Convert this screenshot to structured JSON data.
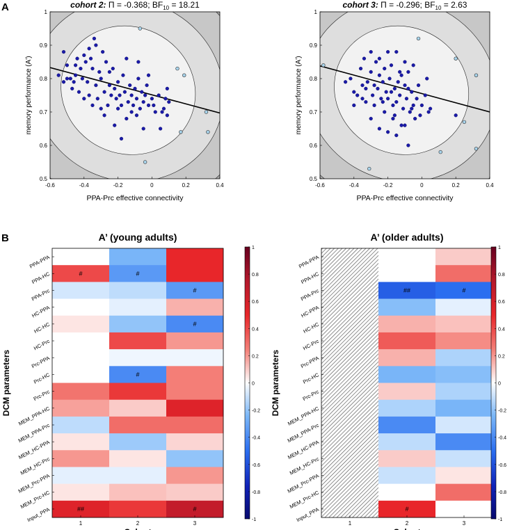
{
  "panel_labels": {
    "a": "A",
    "b": "B"
  },
  "ellipse_colors": [
    "#f2f2f2",
    "#dedede",
    "#c7c7c7",
    "#a8a8a8",
    "#8a8a8a",
    "#6a6a6a",
    "#4a4a4a",
    "#2e2e2e"
  ],
  "marker_colors": {
    "inlier": "#1a1aa8",
    "outlier": "#a8d4ec"
  },
  "chart_data": [
    {
      "type": "scatter",
      "panel": "A",
      "title_cohort": "cohort 2:",
      "title_stats": " Π = -0.368; BF",
      "title_bf_sub": "10",
      "title_bf_val": " = 18.21",
      "xlabel": "PPA-Prc effective connectivity",
      "ylabel": "memory performance (A')",
      "xlim": [
        -0.6,
        0.4
      ],
      "ylim": [
        0.5,
        1.0
      ],
      "xticks": [
        "-0.6",
        "-0.4",
        "-0.2",
        "0",
        "0.2",
        "0.4"
      ],
      "yticks": [
        "0.5",
        "0.6",
        "0.7",
        "0.8",
        "0.9",
        "1"
      ],
      "fit_line": {
        "x": [
          -0.6,
          0.4
        ],
        "y": [
          0.833,
          0.697
        ]
      },
      "ellipse": {
        "cx": -0.14,
        "cy": 0.765,
        "a": [
          0.36,
          -0.09
        ],
        "b": [
          0.12,
          0.18
        ]
      },
      "inliers": [
        [
          -0.55,
          0.81
        ],
        [
          -0.52,
          0.88
        ],
        [
          -0.5,
          0.84
        ],
        [
          -0.48,
          0.8
        ],
        [
          -0.47,
          0.77
        ],
        [
          -0.46,
          0.79
        ],
        [
          -0.45,
          0.84
        ],
        [
          -0.44,
          0.86
        ],
        [
          -0.43,
          0.76
        ],
        [
          -0.42,
          0.83
        ],
        [
          -0.41,
          0.8
        ],
        [
          -0.4,
          0.87
        ],
        [
          -0.39,
          0.85
        ],
        [
          -0.38,
          0.79
        ],
        [
          -0.37,
          0.75
        ],
        [
          -0.36,
          0.86
        ],
        [
          -0.35,
          0.83
        ],
        [
          -0.34,
          0.92
        ],
        [
          -0.33,
          0.78
        ],
        [
          -0.32,
          0.74
        ],
        [
          -0.31,
          0.82
        ],
        [
          -0.3,
          0.8
        ],
        [
          -0.29,
          0.88
        ],
        [
          -0.28,
          0.76
        ],
        [
          -0.27,
          0.85
        ],
        [
          -0.26,
          0.72
        ],
        [
          -0.25,
          0.78
        ],
        [
          -0.24,
          0.75
        ],
        [
          -0.23,
          0.83
        ],
        [
          -0.22,
          0.77
        ],
        [
          -0.21,
          0.74
        ],
        [
          -0.2,
          0.79
        ],
        [
          -0.19,
          0.75
        ],
        [
          -0.18,
          0.72
        ],
        [
          -0.17,
          0.81
        ],
        [
          -0.16,
          0.76
        ],
        [
          -0.15,
          0.68
        ],
        [
          -0.14,
          0.73
        ],
        [
          -0.13,
          0.78
        ],
        [
          -0.12,
          0.75
        ],
        [
          -0.11,
          0.72
        ],
        [
          -0.1,
          0.77
        ],
        [
          -0.09,
          0.74
        ],
        [
          -0.08,
          0.8
        ],
        [
          -0.07,
          0.71
        ],
        [
          -0.06,
          0.76
        ],
        [
          -0.05,
          0.73
        ],
        [
          -0.04,
          0.75
        ],
        [
          -0.03,
          0.78
        ],
        [
          -0.02,
          0.72
        ],
        [
          0.0,
          0.74
        ],
        [
          0.02,
          0.7
        ],
        [
          0.04,
          0.75
        ],
        [
          0.06,
          0.7
        ],
        [
          0.07,
          0.71
        ],
        [
          0.08,
          0.74
        ],
        [
          0.09,
          0.77
        ],
        [
          0.1,
          0.73
        ],
        [
          -0.28,
          0.69
        ],
        [
          -0.22,
          0.66
        ],
        [
          -0.3,
          0.71
        ],
        [
          -0.18,
          0.62
        ],
        [
          -0.05,
          0.65
        ],
        [
          0.05,
          0.65
        ],
        [
          -0.35,
          0.72
        ],
        [
          -0.12,
          0.7
        ],
        [
          -0.25,
          0.82
        ],
        [
          -0.15,
          0.86
        ],
        [
          -0.37,
          0.89
        ],
        [
          -0.33,
          0.9
        ],
        [
          -0.4,
          0.74
        ],
        [
          -0.45,
          0.81
        ],
        [
          -0.52,
          0.79
        ],
        [
          -0.5,
          0.8
        ],
        [
          -0.09,
          0.69
        ],
        [
          0.01,
          0.72
        ],
        [
          -0.02,
          0.81
        ],
        [
          -0.08,
          0.85
        ],
        [
          0.09,
          0.69
        ],
        [
          -0.2,
          0.71
        ]
      ],
      "outliers": [
        [
          -0.07,
          0.95
        ],
        [
          0.15,
          0.83
        ],
        [
          0.19,
          0.81
        ],
        [
          0.32,
          0.7
        ],
        [
          0.33,
          0.64
        ],
        [
          0.17,
          0.64
        ],
        [
          -0.04,
          0.55
        ]
      ]
    },
    {
      "type": "scatter",
      "panel": "A",
      "title_cohort": "cohort 3:",
      "title_stats": " Π = -0.296; BF",
      "title_bf_sub": "10",
      "title_bf_val": " = 2.63",
      "xlabel": "PPA-Prc effective connectivity",
      "ylabel": "memory performance (A')",
      "xlim": [
        -0.6,
        0.4
      ],
      "ylim": [
        0.5,
        1.0
      ],
      "xticks": [
        "-0.6",
        "-0.4",
        "-0.2",
        "0",
        "0.2",
        "0.4"
      ],
      "yticks": [
        "0.5",
        "0.6",
        "0.7",
        "0.8",
        "0.9",
        "1"
      ],
      "fit_line": {
        "x": [
          -0.6,
          0.4
        ],
        "y": [
          0.838,
          0.7
        ]
      },
      "ellipse": {
        "cx": -0.12,
        "cy": 0.765,
        "a": [
          0.36,
          -0.09
        ],
        "b": [
          0.12,
          0.18
        ]
      },
      "inliers": [
        [
          -0.42,
          0.8
        ],
        [
          -0.4,
          0.76
        ],
        [
          -0.38,
          0.75
        ],
        [
          -0.36,
          0.83
        ],
        [
          -0.35,
          0.78
        ],
        [
          -0.34,
          0.86
        ],
        [
          -0.33,
          0.73
        ],
        [
          -0.32,
          0.79
        ],
        [
          -0.3,
          0.82
        ],
        [
          -0.29,
          0.75
        ],
        [
          -0.28,
          0.72
        ],
        [
          -0.27,
          0.85
        ],
        [
          -0.26,
          0.77
        ],
        [
          -0.25,
          0.81
        ],
        [
          -0.24,
          0.74
        ],
        [
          -0.23,
          0.79
        ],
        [
          -0.22,
          0.83
        ],
        [
          -0.21,
          0.76
        ],
        [
          -0.2,
          0.74
        ],
        [
          -0.19,
          0.8
        ],
        [
          -0.18,
          0.84
        ],
        [
          -0.17,
          0.72
        ],
        [
          -0.16,
          0.77
        ],
        [
          -0.15,
          0.73
        ],
        [
          -0.14,
          0.79
        ],
        [
          -0.13,
          0.75
        ],
        [
          -0.12,
          0.81
        ],
        [
          -0.11,
          0.71
        ],
        [
          -0.1,
          0.78
        ],
        [
          -0.09,
          0.74
        ],
        [
          -0.08,
          0.82
        ],
        [
          -0.07,
          0.7
        ],
        [
          -0.06,
          0.76
        ],
        [
          -0.05,
          0.72
        ],
        [
          -0.04,
          0.68
        ],
        [
          -0.03,
          0.74
        ],
        [
          -0.02,
          0.78
        ],
        [
          0.0,
          0.72
        ],
        [
          0.02,
          0.75
        ],
        [
          0.04,
          0.7
        ],
        [
          -0.3,
          0.88
        ],
        [
          -0.25,
          0.86
        ],
        [
          -0.15,
          0.88
        ],
        [
          -0.2,
          0.88
        ],
        [
          -0.1,
          0.85
        ],
        [
          -0.05,
          0.84
        ],
        [
          -0.22,
          0.7
        ],
        [
          -0.17,
          0.68
        ],
        [
          -0.12,
          0.66
        ],
        [
          -0.3,
          0.68
        ],
        [
          -0.25,
          0.65
        ],
        [
          -0.2,
          0.64
        ],
        [
          -0.15,
          0.63
        ],
        [
          -0.1,
          0.66
        ],
        [
          -0.08,
          0.6
        ],
        [
          0.2,
          0.69
        ],
        [
          -0.35,
          0.74
        ],
        [
          -0.4,
          0.72
        ],
        [
          -0.45,
          0.79
        ],
        [
          -0.28,
          0.78
        ],
        [
          -0.18,
          0.76
        ],
        [
          -0.08,
          0.77
        ],
        [
          0.03,
          0.8
        ],
        [
          -0.13,
          0.82
        ],
        [
          -0.23,
          0.73
        ],
        [
          -0.33,
          0.77
        ],
        [
          -0.06,
          0.71
        ],
        [
          -0.01,
          0.69
        ],
        [
          -0.16,
          0.69
        ],
        [
          0.05,
          0.71
        ]
      ],
      "outliers": [
        [
          -0.58,
          0.84
        ],
        [
          -0.02,
          0.92
        ],
        [
          0.2,
          0.86
        ],
        [
          0.32,
          0.81
        ],
        [
          0.25,
          0.67
        ],
        [
          0.32,
          0.59
        ],
        [
          0.11,
          0.58
        ],
        [
          -0.31,
          0.53
        ]
      ]
    },
    {
      "type": "heatmap",
      "panel": "B",
      "title": "A’ (young adults)",
      "xlabel": "Cohort",
      "ylabel": "DCM parameters",
      "columns": [
        "1",
        "2",
        "3"
      ],
      "rows": [
        "PPA-PPA",
        "PPA-HC",
        "PPA-Prc",
        "HC-PPA",
        "HC-HC",
        "HC-Prc",
        "Prc-PPA",
        "Prc-HC",
        "Prc-Prc",
        "MEM_PPA-HC",
        "MEM_PPA-Prc",
        "MEM_HC-PPA",
        "MEM_HC-Prc",
        "MEM_Prc-PPA",
        "MEM_Prc-HC",
        "Input_PPA"
      ],
      "values": [
        [
          0.0,
          -0.25,
          0.5
        ],
        [
          0.4,
          -0.35,
          0.5
        ],
        [
          -0.08,
          -0.12,
          -0.35
        ],
        [
          0.0,
          -0.05,
          0.15
        ],
        [
          0.05,
          -0.2,
          -0.4
        ],
        [
          0.0,
          0.4,
          0.2
        ],
        [
          0.0,
          -0.03,
          -0.03
        ],
        [
          0.0,
          -0.4,
          0.25
        ],
        [
          0.28,
          0.45,
          0.25
        ],
        [
          0.18,
          0.1,
          0.55
        ],
        [
          -0.12,
          0.3,
          0.3
        ],
        [
          0.05,
          -0.18,
          0.08
        ],
        [
          0.2,
          0.05,
          -0.2
        ],
        [
          -0.05,
          -0.05,
          0.2
        ],
        [
          0.05,
          0.12,
          0.1
        ],
        [
          0.55,
          0.45,
          0.68
        ]
      ],
      "annotations": [
        {
          "row": 1,
          "col": 0,
          "text": "#"
        },
        {
          "row": 1,
          "col": 1,
          "text": "#"
        },
        {
          "row": 2,
          "col": 2,
          "text": "#"
        },
        {
          "row": 4,
          "col": 2,
          "text": "#"
        },
        {
          "row": 7,
          "col": 1,
          "text": "#"
        },
        {
          "row": 15,
          "col": 0,
          "text": "##"
        },
        {
          "row": 15,
          "col": 2,
          "text": "#"
        }
      ],
      "hatched_columns": [],
      "clim": [
        -1,
        1
      ],
      "colorbar_ticks": [
        "1",
        "0.8",
        "0.6",
        "0.4",
        "0.2",
        "0",
        "-0.2",
        "-0.4",
        "-0.6",
        "-0.8",
        "-1"
      ]
    },
    {
      "type": "heatmap",
      "panel": "B",
      "title": "A’ (older adults)",
      "xlabel": "Cohort",
      "ylabel": "DCM parameters",
      "columns": [
        "1",
        "2",
        "3"
      ],
      "rows": [
        "PPA-PPA",
        "PPA-HC",
        "PPA-Prc",
        "HC-PPA",
        "HC-HC",
        "HC-Prc",
        "Prc-PPA",
        "Prc-HC",
        "Prc-Prc",
        "MEM_PPA-HC",
        "MEM_PPA-Prc",
        "MEM_HC-PPA",
        "MEM_HC-Prc",
        "MEM_Prc-PPA",
        "MEM_Prc-HC",
        "Input_PPA"
      ],
      "values": [
        [
          null,
          0.0,
          0.1
        ],
        [
          null,
          0.0,
          0.3
        ],
        [
          null,
          -0.55,
          -0.5
        ],
        [
          null,
          -0.22,
          -0.05
        ],
        [
          null,
          0.15,
          0.12
        ],
        [
          null,
          0.35,
          0.22
        ],
        [
          null,
          0.15,
          -0.15
        ],
        [
          null,
          -0.25,
          -0.22
        ],
        [
          null,
          0.1,
          -0.15
        ],
        [
          null,
          -0.15,
          -0.25
        ],
        [
          null,
          -0.4,
          -0.08
        ],
        [
          null,
          -0.12,
          -0.4
        ],
        [
          null,
          0.1,
          -0.1
        ],
        [
          null,
          -0.1,
          0.05
        ],
        [
          null,
          0.0,
          0.3
        ],
        [
          null,
          0.5,
          0.0
        ]
      ],
      "annotations": [
        {
          "row": 2,
          "col": 1,
          "text": "##"
        },
        {
          "row": 2,
          "col": 2,
          "text": "#"
        },
        {
          "row": 15,
          "col": 1,
          "text": "#"
        }
      ],
      "hatched_columns": [
        0
      ],
      "clim": [
        -1,
        1
      ],
      "colorbar_ticks": [
        "1",
        "0.8",
        "0.6",
        "0.4",
        "0.2",
        "0",
        "-0.2",
        "-0.4",
        "-0.6",
        "-0.8",
        "-1"
      ]
    }
  ]
}
